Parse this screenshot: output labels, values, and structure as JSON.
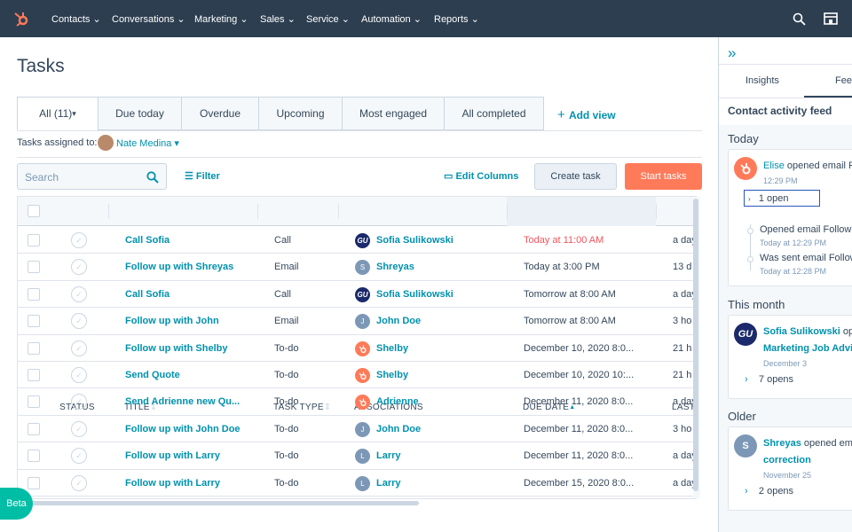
{
  "nav": {
    "items": [
      "Contacts",
      "Conversations",
      "Marketing",
      "Sales",
      "Service",
      "Automation",
      "Reports"
    ]
  },
  "header": {
    "title": "Tasks"
  },
  "tabs": {
    "items": [
      "All (11)",
      "Due today",
      "Overdue",
      "Upcoming",
      "Most engaged",
      "All completed"
    ],
    "add_view": "Add view"
  },
  "assigned": {
    "label": "Tasks assigned to:",
    "name": "Nate Medina"
  },
  "toolbar": {
    "search": "Search",
    "filter": "Filter",
    "edit_columns": "Edit Columns",
    "create": "Create task",
    "start": "Start tasks"
  },
  "table": {
    "columns": [
      "STATUS",
      "TITLE",
      "TASK TYPE",
      "ASSOCIATIONS",
      "DUE DATE",
      "LAST"
    ],
    "rows": [
      {
        "title": "Call Sofia",
        "type": "Call",
        "avatar": "GU",
        "avatar_color": "#1b2a6b",
        "association": "Sofia Sulikowski",
        "due": "Today at 11:00 AM",
        "due_color": "#f2545b",
        "last": "a day"
      },
      {
        "title": "Follow up with Shreyas",
        "type": "Email",
        "avatar": "S",
        "avatar_color": "#7c98b6",
        "association": "Shreyas",
        "due": "Today at 3:00 PM",
        "last": "13 d"
      },
      {
        "title": "Call Sofia",
        "type": "Call",
        "avatar": "GU",
        "avatar_color": "#1b2a6b",
        "association": "Sofia Sulikowski",
        "due": "Tomorrow at 8:00 AM",
        "last": "a day"
      },
      {
        "title": "Follow up with John",
        "type": "Email",
        "avatar": "J",
        "avatar_color": "#7c98b6",
        "association": "John Doe",
        "due": "Tomorrow at 8:00 AM",
        "last": "3 ho"
      },
      {
        "title": "Follow up with Shelby",
        "type": "To-do",
        "association": "Shelby",
        "due": "December 10, 2020 8:0...",
        "last": "21 h"
      },
      {
        "title": "Send Quote",
        "type": "To-do",
        "association": "Shelby",
        "due": "December 10, 2020 10:...",
        "last": "21 h"
      },
      {
        "title": "Send Adrienne new Qu...",
        "type": "To-do",
        "association": "Adrienne",
        "due": "December 11, 2020 8:0...",
        "last": "a day"
      },
      {
        "title": "Follow up with John Doe",
        "type": "To-do",
        "avatar": "J",
        "avatar_color": "#7c98b6",
        "association": "John Doe",
        "due": "December 11, 2020 8:0...",
        "last": "3 ho"
      },
      {
        "title": "Follow up with Larry",
        "type": "To-do",
        "avatar": "L",
        "avatar_color": "#7c98b6",
        "association": "Larry",
        "due": "December 11, 2020 8:0...",
        "last": "a day"
      },
      {
        "title": "Follow up with Larry",
        "type": "To-do",
        "avatar": "L",
        "avatar_color": "#7c98b6",
        "association": "Larry",
        "due": "December 15, 2020 8:0...",
        "last": "a day"
      }
    ]
  },
  "panel": {
    "tabs": [
      "Insights",
      "Fee"
    ],
    "title": "Contact activity feed",
    "today": {
      "heading": "Today",
      "name": "Elise",
      "action": "opened email F",
      "time": "12:29 PM",
      "opens": "1 open",
      "events": [
        {
          "text": "Opened email Follow",
          "time": "Today at 12:29 PM"
        },
        {
          "text": "Was sent email Follow",
          "time": "Today at 12:28 PM"
        }
      ]
    },
    "month": {
      "heading": "This month",
      "avatar": "GU",
      "name": "Sofia Sulikowski",
      "action": "ope",
      "subject": "Marketing Job Advic",
      "date": "December 3",
      "opens": "7 opens"
    },
    "older": {
      "heading": "Older",
      "avatar": "S",
      "name": "Shreyas",
      "action": "opened ema",
      "subject": "correction",
      "date": "November 25",
      "opens": "2 opens"
    }
  },
  "beta": "Beta"
}
